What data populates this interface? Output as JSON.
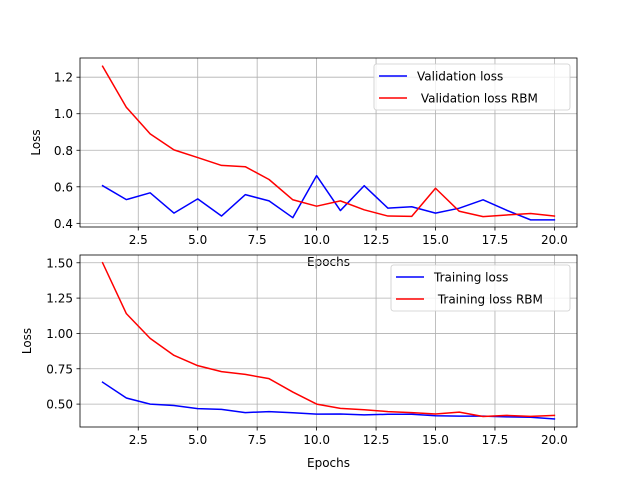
{
  "colors": {
    "validation": "#0000ff",
    "rbm": "#ff0000",
    "grid": "#b0b0b0",
    "axes": "#000000"
  },
  "chart_data": [
    {
      "type": "line",
      "title": "",
      "xlabel": "Epochs",
      "ylabel": "Loss",
      "xlim": [
        0.05,
        20.95
      ],
      "ylim": [
        0.38,
        1.305
      ],
      "xticks": [
        2.5,
        5.0,
        7.5,
        10.0,
        12.5,
        15.0,
        17.5,
        20.0
      ],
      "xtick_labels": [
        "2.5",
        "5.0",
        "7.5",
        "10.0",
        "12.5",
        "15.0",
        "17.5",
        "20.0"
      ],
      "yticks": [
        0.4,
        0.6,
        0.8,
        1.0,
        1.2
      ],
      "ytick_labels": [
        "0.4",
        "0.6",
        "0.8",
        "1.0",
        "1.2"
      ],
      "grid": true,
      "legend_position": "top-right",
      "x": [
        1,
        2,
        3,
        4,
        5,
        6,
        7,
        8,
        9,
        10,
        11,
        12,
        13,
        14,
        15,
        16,
        17,
        18,
        19,
        20
      ],
      "series": [
        {
          "name": "Validation loss",
          "color": "#0000ff",
          "values": [
            0.606,
            0.53,
            0.567,
            0.456,
            0.534,
            0.44,
            0.557,
            0.523,
            0.431,
            0.661,
            0.47,
            0.606,
            0.483,
            0.491,
            0.456,
            0.483,
            0.529,
            0.471,
            0.419,
            0.419
          ]
        },
        {
          "name": " Validation loss RBM",
          "color": "#ff0000",
          "values": [
            1.26,
            1.035,
            0.89,
            0.802,
            0.76,
            0.717,
            0.71,
            0.64,
            0.529,
            0.494,
            0.523,
            0.474,
            0.44,
            0.438,
            0.592,
            0.466,
            0.437,
            0.446,
            0.454,
            0.44
          ]
        }
      ]
    },
    {
      "type": "line",
      "title": "",
      "xlabel": "Epochs",
      "ylabel": "Loss",
      "xlim": [
        0.05,
        20.95
      ],
      "ylim": [
        0.338,
        1.555
      ],
      "xticks": [
        2.5,
        5.0,
        7.5,
        10.0,
        12.5,
        15.0,
        17.5,
        20.0
      ],
      "xtick_labels": [
        "2.5",
        "5.0",
        "7.5",
        "10.0",
        "12.5",
        "15.0",
        "17.5",
        "20.0"
      ],
      "yticks": [
        0.5,
        0.75,
        1.0,
        1.25,
        1.5
      ],
      "ytick_labels": [
        "0.50",
        "0.75",
        "1.00",
        "1.25",
        "1.50"
      ],
      "grid": true,
      "legend_position": "top-right",
      "x": [
        1,
        2,
        3,
        4,
        5,
        6,
        7,
        8,
        9,
        10,
        11,
        12,
        13,
        14,
        15,
        16,
        17,
        18,
        19,
        20
      ],
      "series": [
        {
          "name": "Training loss",
          "color": "#0000ff",
          "values": [
            0.655,
            0.543,
            0.5,
            0.49,
            0.468,
            0.463,
            0.44,
            0.447,
            0.439,
            0.429,
            0.43,
            0.424,
            0.428,
            0.428,
            0.418,
            0.415,
            0.415,
            0.41,
            0.407,
            0.395
          ]
        },
        {
          "name": " Training loss RBM",
          "color": "#ff0000",
          "values": [
            1.5,
            1.14,
            0.965,
            0.845,
            0.772,
            0.73,
            0.71,
            0.68,
            0.585,
            0.5,
            0.47,
            0.46,
            0.447,
            0.44,
            0.43,
            0.443,
            0.412,
            0.42,
            0.413,
            0.42
          ]
        }
      ]
    }
  ]
}
